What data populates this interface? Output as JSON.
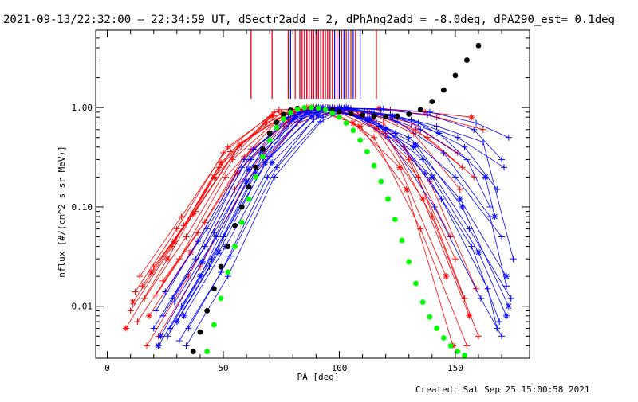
{
  "chart_data": {
    "type": "line",
    "title": "2021-09-13/22:32:00 — 22:34:59 UT, dSectr2add = 2, dPhAng2add = -8.0deg, dPA290_est=  0.1deg",
    "xlabel": "PA [deg]",
    "ylabel": "nflux [#/(cm^2 s sr MeV)]",
    "xlim": [
      -5,
      182
    ],
    "ylim": [
      0.003,
      6
    ],
    "y_scale": "log",
    "x_ticks": [
      0,
      50,
      100,
      150
    ],
    "x_tick_labels": [
      "0",
      "50",
      "100",
      "150"
    ],
    "y_ticks": [
      0.01,
      0.1,
      1.0
    ],
    "y_tick_labels": [
      "0.01",
      "0.10",
      "1.00"
    ],
    "grid": false,
    "colors": {
      "red_traces": "#ff0000",
      "blue_traces": "#0000ff",
      "black_fit": "#000000",
      "green_fit": "#00ff00"
    },
    "vertical_markers": {
      "red": [
        62,
        71,
        78,
        81,
        83,
        84,
        85,
        86,
        87,
        88,
        89,
        90,
        91,
        92,
        93,
        94,
        95,
        96,
        97,
        99,
        101,
        103,
        105,
        107,
        116
      ],
      "blue": [
        62,
        71,
        79,
        83,
        84,
        85,
        86,
        87,
        88,
        89,
        90,
        91,
        92,
        93,
        94,
        95,
        96,
        98,
        100,
        102,
        104,
        106,
        109
      ]
    },
    "series": [
      {
        "color": "black",
        "marker": "dot",
        "x": [
          37,
          40,
          43,
          46,
          49,
          52,
          55,
          58,
          61,
          64,
          67,
          70,
          73,
          76,
          79,
          82,
          85,
          88,
          91,
          94,
          97,
          100,
          105,
          110,
          115,
          120,
          125,
          130,
          135,
          140,
          145,
          150,
          155,
          160
        ],
        "y": [
          0.0035,
          0.0055,
          0.009,
          0.015,
          0.025,
          0.04,
          0.065,
          0.1,
          0.16,
          0.25,
          0.38,
          0.55,
          0.71,
          0.85,
          0.94,
          0.98,
          0.99,
          1.0,
          0.98,
          0.96,
          0.94,
          0.91,
          0.87,
          0.84,
          0.82,
          0.81,
          0.82,
          0.86,
          0.95,
          1.15,
          1.5,
          2.1,
          3.0,
          4.2
        ]
      },
      {
        "color": "green",
        "marker": "dot",
        "x": [
          43,
          46,
          49,
          52,
          55,
          58,
          61,
          64,
          67,
          70,
          73,
          76,
          79,
          82,
          85,
          88,
          91,
          94,
          97,
          100,
          103,
          106,
          109,
          112,
          115,
          118,
          121,
          124,
          127,
          130,
          133,
          136,
          139,
          142,
          145,
          148,
          151,
          154
        ],
        "y": [
          0.0035,
          0.0065,
          0.012,
          0.022,
          0.04,
          0.07,
          0.12,
          0.2,
          0.32,
          0.47,
          0.63,
          0.77,
          0.89,
          0.96,
          0.995,
          1.0,
          0.985,
          0.95,
          0.88,
          0.8,
          0.7,
          0.59,
          0.47,
          0.36,
          0.26,
          0.18,
          0.12,
          0.075,
          0.046,
          0.028,
          0.017,
          0.011,
          0.0078,
          0.006,
          0.0048,
          0.004,
          0.0035,
          0.0032
        ]
      },
      {
        "color": "red",
        "marker": "+",
        "x": [
          10,
          28,
          48,
          70,
          88,
          108,
          128,
          148
        ],
        "y": [
          0.009,
          0.04,
          0.25,
          0.8,
          1.0,
          0.85,
          0.4,
          0.05
        ]
      },
      {
        "color": "red",
        "marker": "*",
        "x": [
          8,
          26,
          46,
          68,
          86,
          106,
          126,
          146
        ],
        "y": [
          0.006,
          0.03,
          0.2,
          0.7,
          1.0,
          0.7,
          0.25,
          0.02
        ]
      },
      {
        "color": "red",
        "marker": "+",
        "x": [
          12,
          30,
          50,
          72,
          90,
          110,
          130,
          150
        ],
        "y": [
          0.014,
          0.06,
          0.35,
          0.9,
          1.0,
          0.8,
          0.3,
          0.03
        ]
      },
      {
        "color": "red",
        "marker": "+",
        "x": [
          14,
          32,
          52,
          74,
          92,
          112,
          132,
          152
        ],
        "y": [
          0.02,
          0.08,
          0.4,
          0.95,
          0.98,
          0.9,
          0.55,
          0.15
        ]
      },
      {
        "color": "red",
        "marker": "+",
        "x": [
          16,
          34,
          54,
          76,
          94,
          114,
          134,
          154
        ],
        "y": [
          0.012,
          0.05,
          0.3,
          0.85,
          1.0,
          0.75,
          0.2,
          0.012
        ]
      },
      {
        "color": "red",
        "marker": "*",
        "x": [
          18,
          36,
          56,
          78,
          96,
          116,
          136,
          156
        ],
        "y": [
          0.008,
          0.035,
          0.22,
          0.75,
          0.98,
          0.6,
          0.12,
          0.008
        ]
      },
      {
        "color": "red",
        "marker": "+",
        "x": [
          20,
          38,
          58,
          80,
          98,
          118,
          138,
          158
        ],
        "y": [
          0.025,
          0.09,
          0.45,
          0.95,
          0.95,
          0.85,
          0.5,
          0.2
        ]
      },
      {
        "color": "red",
        "marker": "+",
        "x": [
          22,
          40,
          60,
          82,
          100,
          120,
          140,
          160
        ],
        "y": [
          0.005,
          0.025,
          0.18,
          0.7,
          0.97,
          0.55,
          0.08,
          0.005
        ]
      },
      {
        "color": "red",
        "marker": "+",
        "x": [
          24,
          42,
          62,
          84,
          102,
          122,
          142,
          162
        ],
        "y": [
          0.018,
          0.07,
          0.38,
          0.9,
          0.99,
          0.95,
          0.8,
          0.6
        ]
      },
      {
        "color": "red",
        "marker": "*",
        "x": [
          11,
          29,
          49,
          71,
          89,
          109,
          129,
          149
        ],
        "y": [
          0.011,
          0.045,
          0.28,
          0.82,
          1.0,
          0.65,
          0.15,
          0.004
        ]
      },
      {
        "color": "red",
        "marker": "+",
        "x": [
          13,
          31,
          51,
          73,
          91,
          111,
          131,
          151
        ],
        "y": [
          0.007,
          0.03,
          0.2,
          0.72,
          0.99,
          0.92,
          0.7,
          0.35
        ]
      },
      {
        "color": "red",
        "marker": "+",
        "x": [
          15,
          33,
          53,
          75,
          93,
          113,
          133,
          153
        ],
        "y": [
          0.016,
          0.065,
          0.36,
          0.88,
          1.0,
          0.88,
          0.6,
          0.25
        ]
      },
      {
        "color": "red",
        "marker": "+",
        "x": [
          17,
          35,
          55,
          77,
          95,
          115,
          135,
          155
        ],
        "y": [
          0.004,
          0.02,
          0.15,
          0.65,
          0.99,
          0.5,
          0.06,
          0.004
        ]
      },
      {
        "color": "red",
        "marker": "*",
        "x": [
          19,
          37,
          57,
          79,
          97,
          117,
          137,
          157
        ],
        "y": [
          0.022,
          0.085,
          0.42,
          0.92,
          0.98,
          0.97,
          0.9,
          0.8
        ]
      },
      {
        "color": "red",
        "marker": "+",
        "x": [
          21,
          39,
          59,
          81,
          99,
          119,
          139,
          159
        ],
        "y": [
          0.013,
          0.055,
          0.32,
          0.86,
          1.0,
          0.7,
          0.18,
          0.015
        ]
      },
      {
        "color": "blue",
        "marker": "+",
        "x": [
          20,
          38,
          58,
          78,
          90,
          110,
          130,
          150,
          170
        ],
        "y": [
          0.006,
          0.03,
          0.25,
          0.8,
          1.0,
          0.8,
          0.5,
          0.2,
          0.05
        ]
      },
      {
        "color": "blue",
        "marker": "*",
        "x": [
          22,
          40,
          60,
          80,
          92,
          112,
          132,
          152,
          172
        ],
        "y": [
          0.004,
          0.02,
          0.18,
          0.75,
          1.0,
          0.75,
          0.4,
          0.12,
          0.02
        ]
      },
      {
        "color": "blue",
        "marker": "+",
        "x": [
          24,
          42,
          62,
          82,
          94,
          114,
          134,
          154,
          168
        ],
        "y": [
          0.008,
          0.04,
          0.3,
          0.85,
          1.0,
          0.9,
          0.7,
          0.4,
          0.15
        ]
      },
      {
        "color": "blue",
        "marker": "+",
        "x": [
          26,
          44,
          64,
          84,
          96,
          116,
          136,
          156,
          174
        ],
        "y": [
          0.005,
          0.025,
          0.22,
          0.78,
          0.99,
          0.7,
          0.3,
          0.06,
          0.012
        ]
      },
      {
        "color": "blue",
        "marker": "+",
        "x": [
          28,
          46,
          66,
          86,
          98,
          118,
          138,
          158,
          170
        ],
        "y": [
          0.012,
          0.055,
          0.35,
          0.9,
          0.99,
          0.95,
          0.85,
          0.6,
          0.3
        ]
      },
      {
        "color": "blue",
        "marker": "*",
        "x": [
          30,
          48,
          68,
          88,
          100,
          120,
          140,
          160,
          172
        ],
        "y": [
          0.007,
          0.035,
          0.28,
          0.82,
          1.0,
          0.6,
          0.2,
          0.035,
          0.008
        ]
      },
      {
        "color": "blue",
        "marker": "+",
        "x": [
          32,
          50,
          70,
          90,
          102,
          122,
          142,
          162,
          175
        ],
        "y": [
          0.01,
          0.05,
          0.32,
          0.88,
          0.98,
          0.85,
          0.65,
          0.45,
          0.03
        ]
      },
      {
        "color": "blue",
        "marker": "+",
        "x": [
          34,
          52,
          72,
          92,
          104,
          124,
          144,
          164,
          168
        ],
        "y": [
          0.004,
          0.02,
          0.2,
          0.72,
          0.99,
          0.55,
          0.12,
          0.015,
          0.006
        ]
      },
      {
        "color": "blue",
        "marker": "+",
        "x": [
          21,
          39,
          59,
          79,
          91,
          111,
          131,
          151,
          171
        ],
        "y": [
          0.009,
          0.045,
          0.3,
          0.86,
          1.0,
          0.92,
          0.75,
          0.5,
          0.25
        ]
      },
      {
        "color": "blue",
        "marker": "*",
        "x": [
          23,
          41,
          61,
          81,
          93,
          113,
          133,
          153,
          173
        ],
        "y": [
          0.005,
          0.028,
          0.24,
          0.8,
          0.99,
          0.78,
          0.42,
          0.1,
          0.01
        ]
      },
      {
        "color": "blue",
        "marker": "+",
        "x": [
          25,
          43,
          63,
          83,
          95,
          115,
          135,
          155,
          165
        ],
        "y": [
          0.014,
          0.06,
          0.38,
          0.9,
          1.0,
          0.88,
          0.6,
          0.3,
          0.1
        ]
      },
      {
        "color": "blue",
        "marker": "+",
        "x": [
          27,
          45,
          65,
          85,
          97,
          117,
          137,
          157,
          169
        ],
        "y": [
          0.006,
          0.03,
          0.26,
          0.84,
          1.0,
          0.65,
          0.22,
          0.04,
          0.007
        ]
      },
      {
        "color": "blue",
        "marker": "+",
        "x": [
          29,
          47,
          67,
          87,
          99,
          119,
          139,
          159,
          173
        ],
        "y": [
          0.011,
          0.05,
          0.33,
          0.88,
          0.99,
          0.97,
          0.9,
          0.7,
          0.5
        ]
      },
      {
        "color": "blue",
        "marker": "+",
        "x": [
          31,
          49,
          69,
          89,
          101,
          121,
          141,
          161,
          170
        ],
        "y": [
          0.0045,
          0.022,
          0.2,
          0.76,
          0.99,
          0.5,
          0.1,
          0.012,
          0.005
        ]
      },
      {
        "color": "blue",
        "marker": "*",
        "x": [
          33,
          51,
          71,
          91,
          103,
          123,
          143,
          163,
          167
        ],
        "y": [
          0.008,
          0.04,
          0.28,
          0.83,
          1.0,
          0.82,
          0.55,
          0.2,
          0.08
        ]
      },
      {
        "color": "blue",
        "marker": "+",
        "x": [
          35,
          53,
          73,
          93,
          105,
          125,
          145,
          165,
          172
        ],
        "y": [
          0.006,
          0.032,
          0.25,
          0.8,
          0.98,
          0.72,
          0.35,
          0.08,
          0.016
        ]
      }
    ]
  },
  "footer": {
    "created": "Created: Sat Sep 25 15:00:58 2021"
  }
}
